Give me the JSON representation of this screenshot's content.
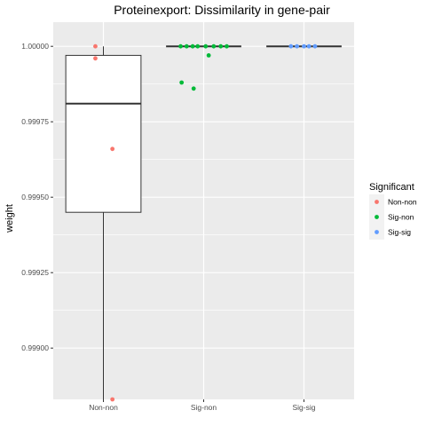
{
  "chart_data": {
    "type": "boxplot",
    "title": "Proteinexport: Dissimilarity in gene-pair",
    "xlabel": "",
    "ylabel": "weight",
    "categories": [
      "Non-non",
      "Sig-non",
      "Sig-sig"
    ],
    "ylim": [
      0.99883,
      1.00008
    ],
    "yticks": [
      0.999,
      0.99925,
      0.9995,
      0.99975,
      1.0
    ],
    "ytick_labels": [
      "0.99900",
      "0.99925",
      "0.99950",
      "0.99975",
      "1.00000"
    ],
    "grid": true,
    "legend": {
      "title": "Significant",
      "position": "right",
      "entries": [
        {
          "label": "Non-non",
          "color": "#F8766D"
        },
        {
          "label": "Sig-non",
          "color": "#00BA38"
        },
        {
          "label": "Sig-sig",
          "color": "#619CFF"
        }
      ]
    },
    "boxes": [
      {
        "category": "Non-non",
        "q1": 0.99945,
        "median": 0.99981,
        "q3": 0.99997,
        "whisker_low": 0.99883,
        "whisker_high": 1.0
      },
      {
        "category": "Sig-non",
        "q1": 1.0,
        "median": 1.0,
        "q3": 1.0,
        "whisker_low": 1.0,
        "whisker_high": 1.0
      },
      {
        "category": "Sig-sig",
        "q1": 1.0,
        "median": 1.0,
        "q3": 1.0,
        "whisker_low": 1.0,
        "whisker_high": 1.0
      }
    ],
    "points": [
      {
        "category": "Non-non",
        "jitter": -0.08,
        "y": 1.0
      },
      {
        "category": "Non-non",
        "jitter": -0.08,
        "y": 0.99996
      },
      {
        "category": "Non-non",
        "jitter": 0.09,
        "y": 0.99966
      },
      {
        "category": "Non-non",
        "jitter": 0.09,
        "y": 0.99883
      },
      {
        "category": "Sig-non",
        "jitter": -0.23,
        "y": 1.0
      },
      {
        "category": "Sig-non",
        "jitter": -0.17,
        "y": 1.0
      },
      {
        "category": "Sig-non",
        "jitter": -0.11,
        "y": 1.0
      },
      {
        "category": "Sig-non",
        "jitter": -0.06,
        "y": 1.0
      },
      {
        "category": "Sig-non",
        "jitter": 0.02,
        "y": 1.0
      },
      {
        "category": "Sig-non",
        "jitter": 0.1,
        "y": 1.0
      },
      {
        "category": "Sig-non",
        "jitter": 0.17,
        "y": 1.0
      },
      {
        "category": "Sig-non",
        "jitter": 0.23,
        "y": 1.0
      },
      {
        "category": "Sig-non",
        "jitter": 0.05,
        "y": 0.99997
      },
      {
        "category": "Sig-non",
        "jitter": -0.22,
        "y": 0.99988
      },
      {
        "category": "Sig-non",
        "jitter": -0.1,
        "y": 0.99986
      },
      {
        "category": "Sig-sig",
        "jitter": -0.13,
        "y": 1.0
      },
      {
        "category": "Sig-sig",
        "jitter": -0.07,
        "y": 1.0
      },
      {
        "category": "Sig-sig",
        "jitter": 0.0,
        "y": 1.0
      },
      {
        "category": "Sig-sig",
        "jitter": 0.05,
        "y": 1.0
      },
      {
        "category": "Sig-sig",
        "jitter": 0.11,
        "y": 1.0
      }
    ]
  }
}
